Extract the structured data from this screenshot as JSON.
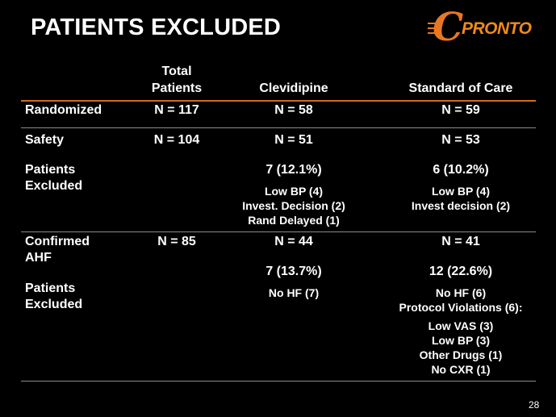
{
  "title": "PATIENTS EXCLUDED",
  "logo": {
    "letter": "C",
    "word": "PRONTO"
  },
  "headers": {
    "total_line1": "Total",
    "total_line2": "Patients",
    "clevidipine": "Clevidipine",
    "soc": "Standard of Care"
  },
  "rows": {
    "randomized": {
      "label": "Randomized",
      "total": "N = 117",
      "clevidipine": "N = 58",
      "soc": "N = 59"
    },
    "safety": {
      "label": "Safety",
      "total": "N = 104",
      "clevidipine": "N = 51",
      "soc": "N = 53"
    },
    "safety_excluded": {
      "label_line1": "Patients",
      "label_line2": "Excluded",
      "clevidipine": "7 (12.1%)",
      "clevidipine_reasons": [
        "Low BP (4)",
        "Invest. Decision (2)",
        "Rand Delayed (1)"
      ],
      "soc": "6 (10.2%)",
      "soc_reasons": [
        "Low BP (4)",
        "Invest decision (2)"
      ]
    },
    "confirmed": {
      "label_line1": "Confirmed",
      "label_line2": "AHF",
      "total": "N = 85",
      "clevidipine": "N = 44",
      "soc": "N = 41"
    },
    "ahf_excluded": {
      "label_line1": "Patients",
      "label_line2": "Excluded",
      "clevidipine": "7 (13.7%)",
      "clevidipine_reasons": [
        "No HF (7)"
      ],
      "soc": "12 (22.6%)",
      "soc_reasons": [
        "No HF (6)",
        "Protocol Violations (6):"
      ],
      "soc_violations": [
        "Low VAS (3)",
        "Low BP (3)",
        "Other Drugs (1)",
        "No CXR (1)"
      ]
    }
  },
  "page_number": "28",
  "colors": {
    "accent": "#e87722",
    "background": "#000000",
    "rule": "#8a8a8a"
  }
}
